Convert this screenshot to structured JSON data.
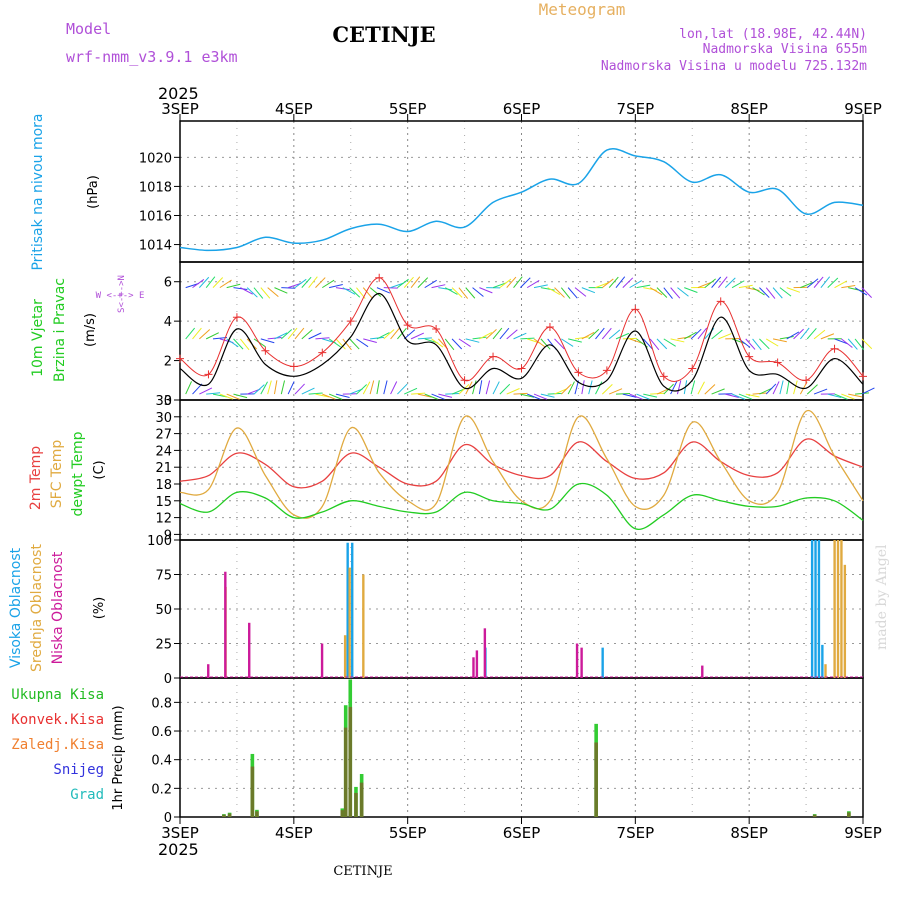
{
  "header": {
    "model_label": "Model",
    "model_name": "wrf-nmm_v3.9.1 e3km",
    "station": "CETINJE",
    "chart_kind": "Meteogram",
    "lonlat": "lon,lat (18.98E, 42.44N)",
    "altitude": "Nadmorska Visina 655m",
    "model_altitude": "Nadmorska Visina u modelu 725.132m",
    "year_top": "2025",
    "year_bottom": "2025",
    "footer_station": "CETINJE",
    "credit": "made by Angel"
  },
  "colors": {
    "pressure": "#1aa3e8",
    "wind_speed": "#000000",
    "wind_gust": "#e83030",
    "t2m": "#e84040",
    "sfc": "#e0aa40",
    "dewpt": "#22cc22",
    "high_cloud": "#1aa3e8",
    "mid_cloud": "#e0aa40",
    "low_cloud": "#cc1a9a",
    "total_precip": "#33cc33",
    "conv_precip": "#e83030",
    "strat_precip": "#f08030",
    "snow": "#3333dd",
    "hail": "#22bbbb",
    "header_purple": "#b050d8",
    "header_orange": "#e6b060"
  },
  "chart_data": [
    {
      "type": "line",
      "title": "Pritisak na nivou mora",
      "ylabel": "(hPa)",
      "x_ticks": [
        "3SEP",
        "4SEP",
        "5SEP",
        "6SEP",
        "7SEP",
        "8SEP",
        "9SEP"
      ],
      "ylim": [
        1012.8,
        1022.5
      ],
      "yticks": [
        1014,
        1016,
        1018,
        1020
      ],
      "x_days": [
        0,
        0.25,
        0.5,
        0.75,
        1,
        1.25,
        1.5,
        1.75,
        2,
        2.25,
        2.5,
        2.75,
        3,
        3.25,
        3.5,
        3.75,
        4,
        4.25,
        4.5,
        4.75,
        5,
        5.25,
        5.5,
        5.75,
        6
      ],
      "series": [
        {
          "name": "Pritisak na nivou mora",
          "values": [
            1013.8,
            1013.6,
            1013.8,
            1014.5,
            1014.1,
            1014.3,
            1015.1,
            1015.4,
            1014.9,
            1015.6,
            1015.2,
            1016.9,
            1017.6,
            1018.5,
            1018.2,
            1020.5,
            1020.1,
            1019.7,
            1018.3,
            1018.8,
            1017.6,
            1017.8,
            1016.1,
            1016.9,
            1016.7
          ]
        }
      ]
    },
    {
      "type": "line",
      "title": "10m Vjetar Brzina i Pravac",
      "ylabel": "(m/s)",
      "ylim": [
        0,
        7
      ],
      "yticks": [
        0,
        2,
        4,
        6
      ],
      "direction_legend": "W <-+-> E, S<-+->N",
      "x_days": [
        0,
        0.25,
        0.5,
        0.75,
        1,
        1.25,
        1.5,
        1.75,
        2,
        2.25,
        2.5,
        2.75,
        3,
        3.25,
        3.5,
        3.75,
        4,
        4.25,
        4.5,
        4.75,
        5,
        5.25,
        5.5,
        5.75,
        6
      ],
      "series": [
        {
          "name": "10m Vjetar Brzina",
          "values": [
            1.6,
            0.8,
            3.6,
            1.8,
            1.2,
            1.8,
            3.2,
            5.4,
            3.0,
            2.8,
            0.6,
            1.6,
            1.1,
            2.8,
            0.9,
            1.0,
            3.5,
            0.7,
            1.0,
            4.2,
            1.5,
            1.3,
            0.6,
            2.1,
            0.8
          ]
        },
        {
          "name": "Udari",
          "values": [
            2.1,
            1.3,
            4.2,
            2.5,
            1.7,
            2.4,
            4.0,
            6.2,
            3.8,
            3.6,
            1.0,
            2.2,
            1.6,
            3.7,
            1.4,
            1.5,
            4.6,
            1.2,
            1.6,
            5.0,
            2.2,
            1.9,
            1.0,
            2.6,
            1.2
          ]
        }
      ]
    },
    {
      "type": "line",
      "title": "2m Temp / SFC Temp / dewpt Temp",
      "ylabel": "(C)",
      "ylim": [
        8,
        33
      ],
      "yticks": [
        9,
        12,
        15,
        18,
        21,
        24,
        27,
        30,
        33
      ],
      "x_days": [
        0,
        0.25,
        0.5,
        0.75,
        1,
        1.25,
        1.5,
        1.75,
        2,
        2.25,
        2.5,
        2.75,
        3,
        3.25,
        3.5,
        3.75,
        4,
        4.25,
        4.5,
        4.75,
        5,
        5.25,
        5.5,
        5.75,
        6
      ],
      "series": [
        {
          "name": "2m Temp",
          "values": [
            18.5,
            19.5,
            23.5,
            21.5,
            17.5,
            18.5,
            23.5,
            21.0,
            18.0,
            18.5,
            25.0,
            21.5,
            19.5,
            19.5,
            25.5,
            22.0,
            19.0,
            20.0,
            25.5,
            22.0,
            19.5,
            20.0,
            26.0,
            23.0,
            21.0
          ]
        },
        {
          "name": "SFC Temp",
          "values": [
            16.5,
            17.0,
            28.0,
            19.5,
            12.5,
            14.0,
            28.0,
            20.0,
            15.0,
            14.5,
            30.0,
            22.0,
            15.0,
            15.0,
            30.0,
            22.5,
            14.0,
            16.0,
            29.0,
            22.0,
            15.0,
            16.5,
            31.0,
            23.0,
            15.0
          ]
        },
        {
          "name": "dewpt Temp",
          "values": [
            14.5,
            13.0,
            16.5,
            15.5,
            12.0,
            13.0,
            15.0,
            14.0,
            13.0,
            13.0,
            16.5,
            15.0,
            14.5,
            13.5,
            18.0,
            16.0,
            10.0,
            12.5,
            16.0,
            15.0,
            14.0,
            14.0,
            15.5,
            15.0,
            11.5
          ]
        }
      ]
    },
    {
      "type": "bar",
      "title": "Visoka Oblacnost / Srednja Oblacnost / Niska Oblacnost",
      "ylabel": "(%)",
      "ylim": [
        0,
        100
      ],
      "yticks": [
        0,
        25,
        50,
        75,
        100
      ],
      "series": [
        {
          "name": "Visoka Oblacnost",
          "x": [
            1.48,
            1.52,
            2.69,
            3.72,
            5.56,
            5.59,
            5.62,
            5.65
          ],
          "values": [
            98,
            98,
            22,
            22,
            100,
            100,
            100,
            24
          ]
        },
        {
          "name": "Srednja Oblacnost",
          "x": [
            0.39,
            1.44,
            1.48,
            1.6,
            5.66,
            5.74,
            5.77,
            5.8,
            5.83
          ],
          "values": [
            66,
            31,
            80,
            75,
            10,
            100,
            100,
            100,
            82
          ]
        },
        {
          "name": "Niska Oblacnost",
          "x": [
            0.22,
            0.37,
            0.58,
            1.22,
            2.55,
            2.58,
            2.65,
            3.46,
            3.5,
            4.56
          ],
          "values": [
            10,
            77,
            40,
            25,
            15,
            20,
            36,
            25,
            22,
            9
          ]
        }
      ]
    },
    {
      "type": "bar",
      "title": "1hr Precip",
      "ylabel": "1hr Precip (mm)",
      "ylim": [
        0,
        0.97
      ],
      "yticks": [
        0,
        0.2,
        0.4,
        0.6,
        0.8
      ],
      "legend": [
        "Ukupna Kisa",
        "Konvek.Kisa",
        "Zaledj.Kisa",
        "Snijeg",
        "Grad"
      ],
      "series": [
        {
          "name": "Ukupna Kisa",
          "x": [
            0.37,
            0.42,
            0.62,
            0.66,
            1.41,
            1.44,
            1.48,
            1.53,
            1.58,
            3.64,
            5.56,
            5.86
          ],
          "values": [
            0.02,
            0.03,
            0.44,
            0.05,
            0.06,
            0.78,
            0.96,
            0.21,
            0.3,
            0.65,
            0.02,
            0.04
          ]
        }
      ]
    }
  ],
  "labels": {
    "p_title": "Pritisak na nivou mora",
    "p_unit": "(hPa)",
    "w_line1": "10m Vjetar",
    "w_line2": "Brzina i Pravac",
    "w_unit": "(m/s)",
    "w_dir1": "W <-+-> E",
    "w_dir2": "S<-+->N",
    "t_line1": "2m Temp",
    "t_line2": "SFC Temp",
    "t_line3": "dewpt Temp",
    "t_unit": "(C)",
    "c_line1": "Visoka Oblacnost",
    "c_line2": "Srednja Oblacnost",
    "c_line3": "Niska Oblacnost",
    "c_unit": "(%)",
    "r_unit": "1hr Precip (mm)",
    "legend_total": "Ukupna Kisa",
    "legend_conv": "Konvek.Kisa",
    "legend_frz": "Zaledj.Kisa",
    "legend_snow": "Snijeg",
    "legend_hail": "Grad"
  }
}
